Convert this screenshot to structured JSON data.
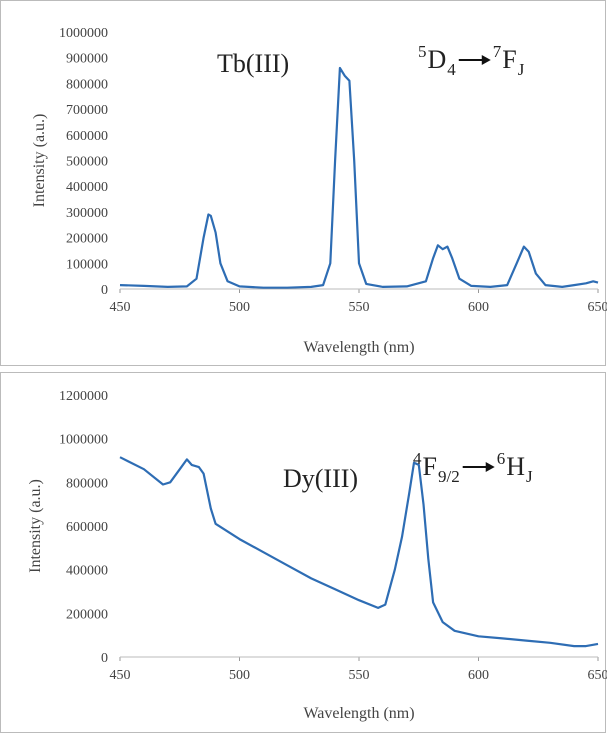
{
  "chart_data": [
    {
      "type": "line",
      "label": "Tb(III)",
      "transition": {
        "from": {
          "sup": "5",
          "base": "D",
          "sub": "4"
        },
        "to": {
          "sup": "7",
          "base": "F",
          "sub": "J"
        }
      },
      "x_label": "Wavelength (nm)",
      "y_label": "Intensity (a.u.)",
      "xlim": [
        450,
        650
      ],
      "xticks": [
        450,
        500,
        550,
        600,
        650
      ],
      "ylim": [
        0,
        1000000
      ],
      "yticks": [
        0,
        100000,
        200000,
        300000,
        400000,
        500000,
        600000,
        700000,
        800000,
        900000,
        1000000
      ],
      "grid": false,
      "series": [
        {
          "color": "#2e6db4",
          "x": [
            450,
            460,
            470,
            478,
            482,
            485,
            487,
            488,
            490,
            492,
            495,
            500,
            510,
            520,
            530,
            535,
            538,
            540,
            542,
            544,
            546,
            548,
            550,
            553,
            560,
            570,
            578,
            581,
            583,
            585,
            587,
            589,
            592,
            597,
            605,
            612,
            616,
            619,
            621,
            624,
            628,
            635,
            640,
            645,
            648,
            650
          ],
          "values": [
            15000,
            12000,
            8000,
            10000,
            40000,
            200000,
            290000,
            285000,
            220000,
            100000,
            30000,
            10000,
            5000,
            5000,
            8000,
            15000,
            100000,
            500000,
            860000,
            830000,
            810000,
            500000,
            100000,
            20000,
            8000,
            10000,
            30000,
            120000,
            170000,
            155000,
            165000,
            120000,
            40000,
            12000,
            8000,
            15000,
            100000,
            165000,
            145000,
            60000,
            15000,
            8000,
            15000,
            22000,
            30000,
            25000
          ]
        }
      ]
    },
    {
      "type": "line",
      "label": "Dy(III)",
      "transition": {
        "from": {
          "sup": "4",
          "base": "F",
          "sub": "9/2"
        },
        "to": {
          "sup": "6",
          "base": "H",
          "sub": "J"
        }
      },
      "x_label": "Wavelength (nm)",
      "y_label": "Intensity (a.u.)",
      "xlim": [
        450,
        650
      ],
      "xticks": [
        450,
        500,
        550,
        600,
        650
      ],
      "ylim": [
        0,
        1200000
      ],
      "yticks": [
        0,
        200000,
        400000,
        600000,
        800000,
        1000000,
        1200000
      ],
      "grid": false,
      "series": [
        {
          "color": "#2e6db4",
          "x": [
            450,
            460,
            468,
            471,
            475,
            478,
            480,
            483,
            485,
            488,
            490,
            500,
            510,
            520,
            530,
            540,
            550,
            558,
            561,
            565,
            568,
            571,
            573,
            575,
            577,
            579,
            581,
            585,
            590,
            600,
            610,
            620,
            630,
            640,
            645,
            650
          ],
          "values": [
            915000,
            860000,
            790000,
            800000,
            860000,
            905000,
            880000,
            870000,
            840000,
            680000,
            610000,
            540000,
            480000,
            420000,
            360000,
            310000,
            260000,
            225000,
            240000,
            400000,
            550000,
            750000,
            890000,
            880000,
            700000,
            450000,
            250000,
            160000,
            120000,
            95000,
            85000,
            75000,
            65000,
            50000,
            50000,
            60000
          ]
        }
      ]
    }
  ]
}
